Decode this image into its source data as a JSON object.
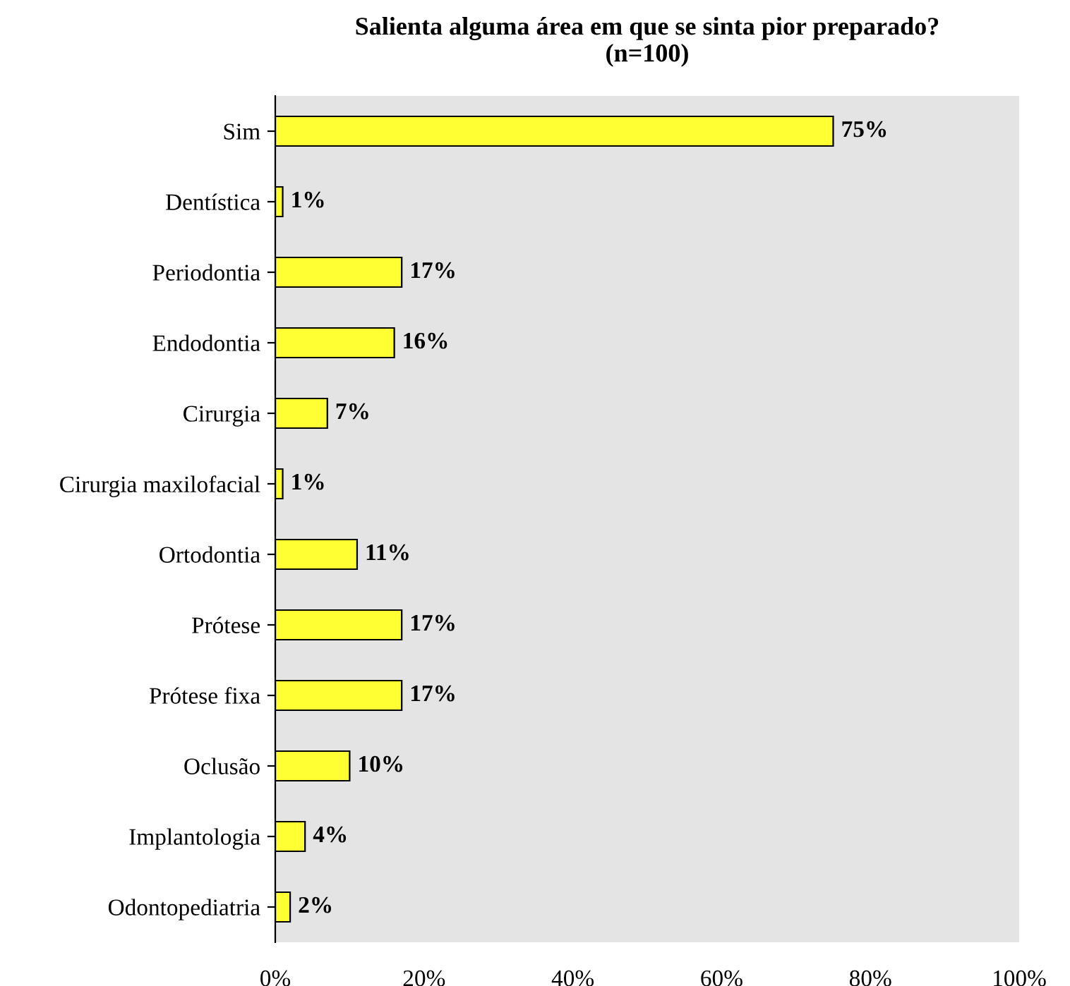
{
  "chart_data": {
    "type": "bar",
    "orientation": "horizontal",
    "title": "Salienta alguma área em que se sinta pior preparado?\n(n=100)",
    "categories": [
      "Sim",
      "Dentística",
      "Periodontia",
      "Endodontia",
      "Cirurgia",
      "Cirurgia maxilofacial",
      "Ortodontia",
      "Prótese",
      "Prótese fixa",
      "Oclusão",
      "Implantologia",
      "Odontopediatria"
    ],
    "values": [
      75,
      1,
      17,
      16,
      7,
      1,
      11,
      17,
      17,
      10,
      4,
      2
    ],
    "value_labels": [
      "75%",
      "1%",
      "17%",
      "16%",
      "7%",
      "1%",
      "11%",
      "17%",
      "17%",
      "10%",
      "4%",
      "2%"
    ],
    "color": "#ffff33",
    "xlim": [
      0,
      100
    ],
    "xticks": [
      {
        "value": 0,
        "label": "0%"
      },
      {
        "value": 20,
        "label": "20%"
      },
      {
        "value": 40,
        "label": "40%"
      },
      {
        "value": 60,
        "label": "60%"
      },
      {
        "value": 80,
        "label": "80%"
      },
      {
        "value": 100,
        "label": "100%"
      }
    ],
    "grid": false,
    "legend": false
  }
}
